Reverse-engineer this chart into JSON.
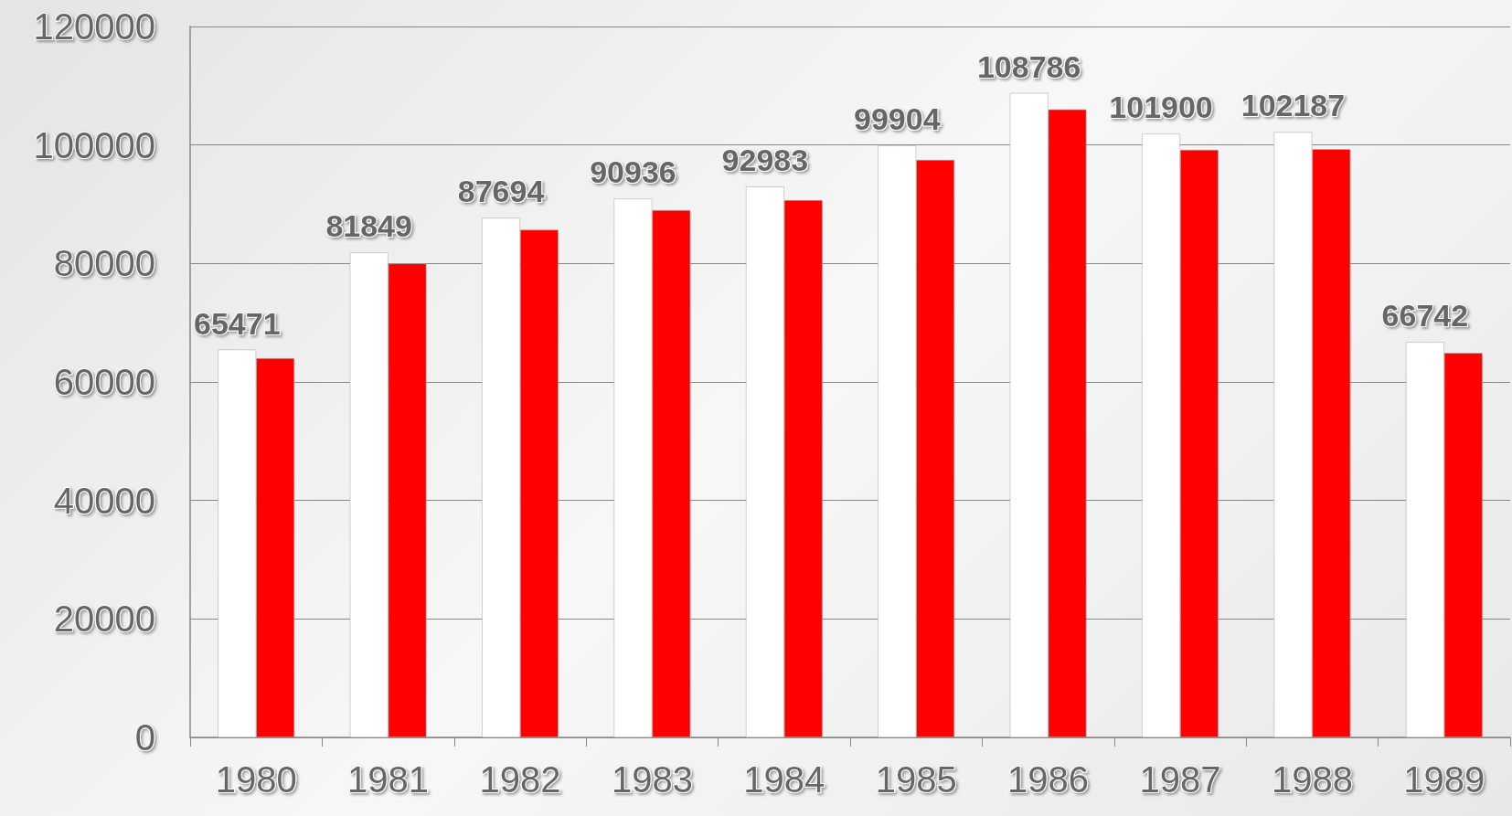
{
  "chart_data": {
    "type": "bar",
    "categories": [
      "1980",
      "1981",
      "1982",
      "1983",
      "1984",
      "1985",
      "1986",
      "1987",
      "1988",
      "1989"
    ],
    "series": [
      {
        "color": "#ffffff",
        "values": [
          65471,
          81849,
          87694,
          90936,
          92983,
          99904,
          108786,
          101900,
          102187,
          66742
        ],
        "value_labels": [
          "65471",
          "81849",
          "87694",
          "90936",
          "92983",
          "99904",
          "108786",
          "101900",
          "102187",
          "66742"
        ]
      },
      {
        "color": "#ff0000",
        "values": [
          64000,
          80000,
          85700,
          89000,
          90700,
          97500,
          106000,
          99200,
          99300,
          64900
        ]
      }
    ],
    "ylim": [
      0,
      120000
    ],
    "yticks": [
      0,
      20000,
      40000,
      60000,
      80000,
      100000,
      120000
    ],
    "grid": "y"
  }
}
